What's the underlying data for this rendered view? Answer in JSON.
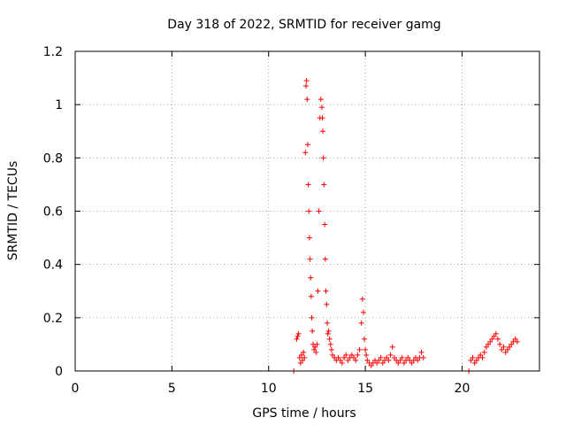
{
  "chart_data": {
    "type": "scatter",
    "title": "Day 318 of 2022, SRMTID for receiver gamg",
    "xlabel": "GPS time / hours",
    "ylabel": "SRMTID / TECUs",
    "xlim": [
      0,
      24
    ],
    "ylim": [
      0,
      1.2
    ],
    "xticks": [
      0,
      5,
      10,
      15,
      20
    ],
    "yticks": [
      0,
      0.2,
      0.4,
      0.6,
      0.8,
      1,
      1.2
    ],
    "xtick_labels": [
      "0",
      "5",
      "10",
      "15",
      "20"
    ],
    "ytick_labels": [
      "0",
      "0.2",
      "0.4",
      "0.6",
      "0.8",
      "1",
      "1.2"
    ],
    "grid": true,
    "marker": "+",
    "series_color": "#ff0000",
    "series": [
      {
        "name": "SRMTID",
        "x": [
          11.3,
          11.45,
          11.5,
          11.55,
          11.6,
          11.65,
          11.7,
          11.75,
          11.8,
          11.85,
          11.9,
          11.93,
          11.96,
          11.99,
          12.02,
          12.05,
          12.08,
          12.11,
          12.14,
          12.17,
          12.2,
          12.23,
          12.26,
          12.3,
          12.35,
          12.4,
          12.45,
          12.5,
          12.55,
          12.6,
          12.65,
          12.7,
          12.75,
          12.78,
          12.8,
          12.83,
          12.86,
          12.9,
          12.93,
          12.96,
          13.0,
          13.03,
          13.06,
          13.1,
          13.15,
          13.2,
          13.25,
          13.3,
          13.4,
          13.5,
          13.6,
          13.7,
          13.8,
          13.9,
          14.0,
          14.1,
          14.2,
          14.3,
          14.4,
          14.5,
          14.6,
          14.7,
          14.8,
          14.85,
          14.9,
          14.95,
          15.0,
          15.05,
          15.1,
          15.2,
          15.3,
          15.4,
          15.5,
          15.6,
          15.7,
          15.8,
          15.9,
          16.0,
          16.1,
          16.2,
          16.3,
          16.4,
          16.5,
          16.6,
          16.7,
          16.8,
          16.9,
          17.0,
          17.1,
          17.2,
          17.3,
          17.4,
          17.5,
          17.6,
          17.7,
          17.8,
          17.9,
          18.0,
          20.35,
          20.45,
          20.55,
          20.65,
          20.75,
          20.85,
          20.95,
          21.05,
          21.15,
          21.25,
          21.35,
          21.45,
          21.55,
          21.65,
          21.75,
          21.85,
          21.95,
          22.05,
          22.15,
          22.25,
          22.35,
          22.45,
          22.55,
          22.65,
          22.75,
          22.85
        ],
        "y": [
          0.0,
          0.12,
          0.13,
          0.14,
          0.05,
          0.03,
          0.06,
          0.04,
          0.07,
          0.05,
          0.82,
          1.07,
          1.09,
          1.02,
          0.85,
          0.7,
          0.6,
          0.5,
          0.42,
          0.35,
          0.28,
          0.2,
          0.15,
          0.1,
          0.08,
          0.09,
          0.07,
          0.1,
          0.3,
          0.6,
          0.95,
          1.02,
          0.99,
          0.95,
          0.9,
          0.8,
          0.7,
          0.55,
          0.42,
          0.3,
          0.25,
          0.18,
          0.14,
          0.15,
          0.12,
          0.1,
          0.08,
          0.06,
          0.05,
          0.04,
          0.05,
          0.04,
          0.03,
          0.05,
          0.06,
          0.04,
          0.05,
          0.06,
          0.05,
          0.04,
          0.06,
          0.08,
          0.18,
          0.27,
          0.22,
          0.12,
          0.08,
          0.06,
          0.04,
          0.03,
          0.02,
          0.03,
          0.04,
          0.03,
          0.04,
          0.05,
          0.03,
          0.04,
          0.05,
          0.04,
          0.06,
          0.09,
          0.05,
          0.04,
          0.03,
          0.04,
          0.05,
          0.03,
          0.04,
          0.05,
          0.04,
          0.03,
          0.04,
          0.05,
          0.04,
          0.05,
          0.07,
          0.05,
          0.0,
          0.04,
          0.05,
          0.03,
          0.04,
          0.05,
          0.06,
          0.05,
          0.07,
          0.09,
          0.1,
          0.11,
          0.12,
          0.13,
          0.14,
          0.12,
          0.1,
          0.08,
          0.09,
          0.07,
          0.08,
          0.09,
          0.1,
          0.11,
          0.12,
          0.11
        ]
      }
    ]
  }
}
